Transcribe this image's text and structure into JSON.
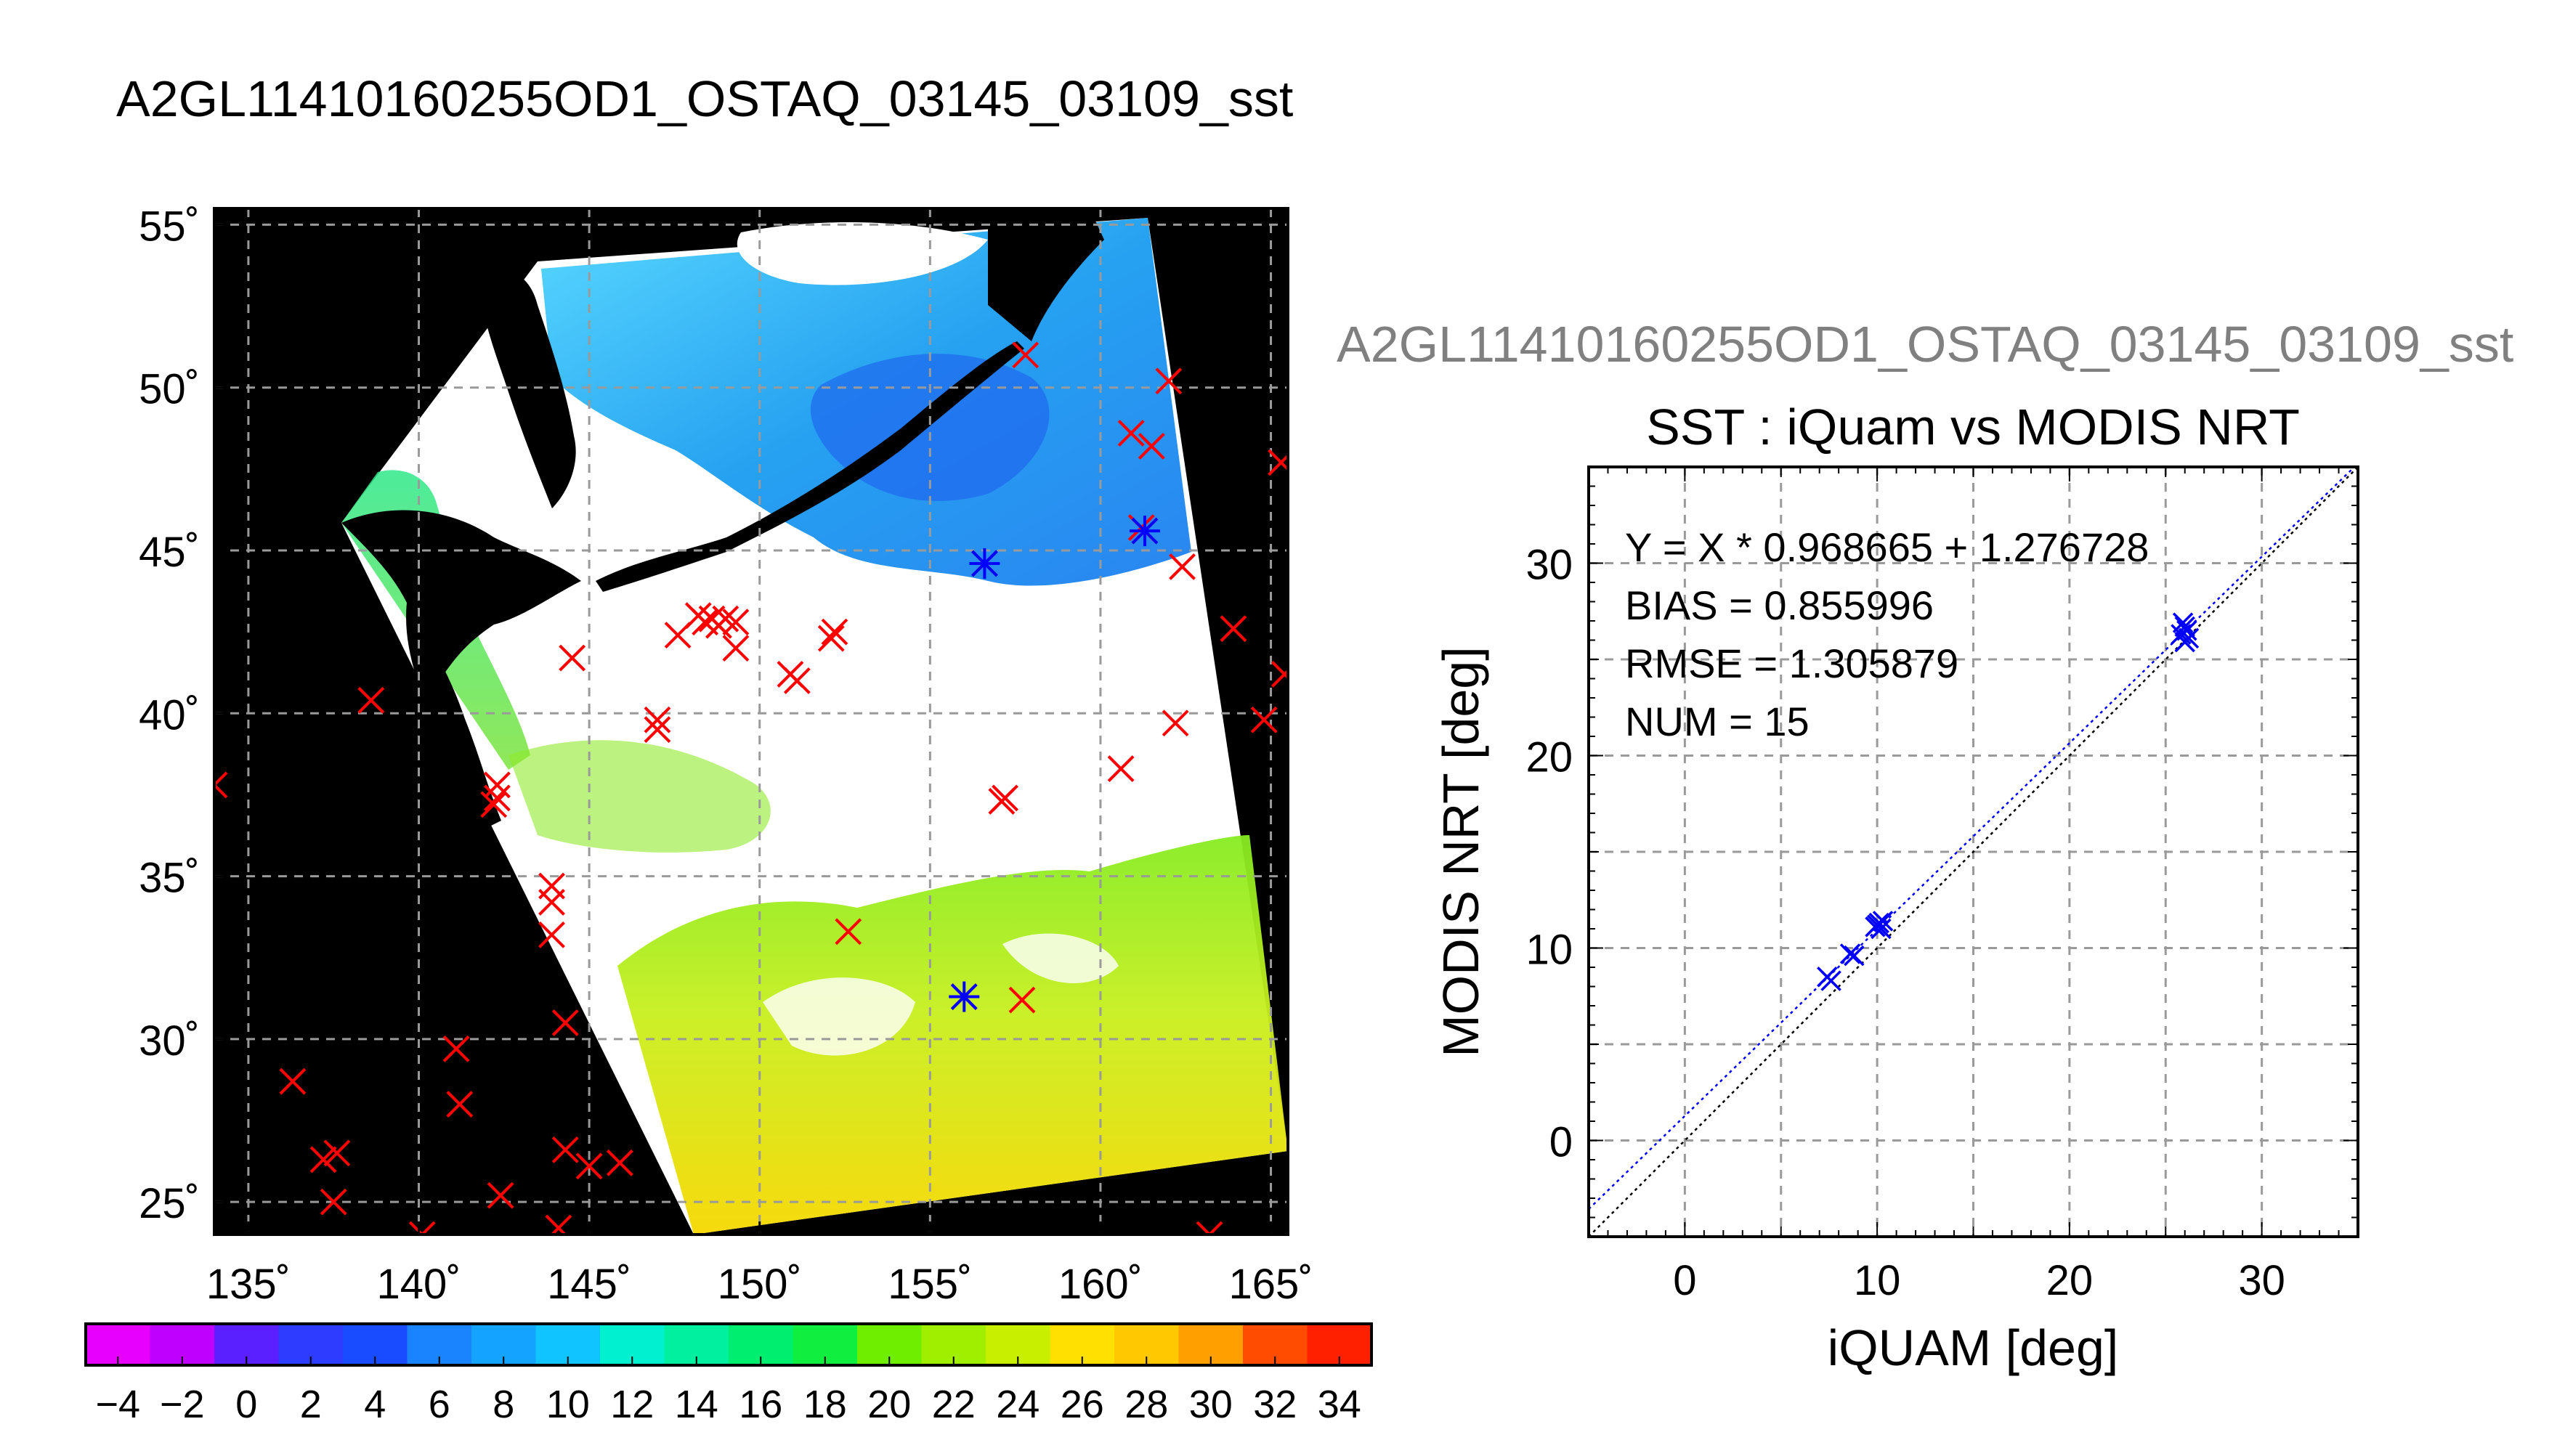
{
  "page_title": "A2GL11410160255OD1_OSTAQ_03145_03109_sst",
  "scatter_file_label": "A2GL11410160255OD1_OSTAQ_03145_03109_sst",
  "chart_data": [
    {
      "type": "map",
      "title": "A2GL11410160255OD1_OSTAQ_03145_03109_sst",
      "lon_range": [
        134.0,
        165.5
      ],
      "lat_range": [
        24.0,
        55.5
      ],
      "grid": true,
      "lon_ticks": [
        135,
        140,
        145,
        150,
        155,
        160,
        165
      ],
      "lat_ticks": [
        25,
        30,
        35,
        40,
        45,
        50,
        55
      ],
      "lon_tick_labels": [
        "135˚",
        "140˚",
        "145˚",
        "150˚",
        "155˚",
        "160˚",
        "165˚"
      ],
      "lat_tick_labels": [
        "25˚",
        "30˚",
        "35˚",
        "40˚",
        "45˚",
        "50˚",
        "55˚"
      ],
      "colorbar": {
        "min": -5,
        "max": 35,
        "step": 2,
        "tick_values": [
          -4,
          -2,
          0,
          2,
          4,
          6,
          8,
          10,
          12,
          14,
          16,
          18,
          20,
          22,
          24,
          26,
          28,
          30,
          32,
          34
        ],
        "tick_labels": [
          "−4",
          "−2",
          "0",
          "2",
          "4",
          "6",
          "8",
          "10",
          "12",
          "14",
          "16",
          "18",
          "20",
          "22",
          "24",
          "26",
          "28",
          "30",
          "32",
          "34"
        ]
      },
      "red_x_markers": [
        [
          134.0,
          37.8
        ],
        [
          136.3,
          28.7
        ],
        [
          137.2,
          26.3
        ],
        [
          137.6,
          26.5
        ],
        [
          137.5,
          25.0
        ],
        [
          138.6,
          40.4
        ],
        [
          140.1,
          24.0
        ],
        [
          141.1,
          29.7
        ],
        [
          141.2,
          28.0
        ],
        [
          142.2,
          37.2
        ],
        [
          142.3,
          37.8
        ],
        [
          142.3,
          37.4
        ],
        [
          142.4,
          25.2
        ],
        [
          143.9,
          34.2
        ],
        [
          143.9,
          34.7
        ],
        [
          143.9,
          33.2
        ],
        [
          144.1,
          24.2
        ],
        [
          144.3,
          30.5
        ],
        [
          144.3,
          26.6
        ],
        [
          144.5,
          41.7
        ],
        [
          145.0,
          26.1
        ],
        [
          145.9,
          26.2
        ],
        [
          147.0,
          39.5
        ],
        [
          147.0,
          39.8
        ],
        [
          147.6,
          42.4
        ],
        [
          148.2,
          43.0
        ],
        [
          148.4,
          42.8
        ],
        [
          148.6,
          42.9
        ],
        [
          148.8,
          42.7
        ],
        [
          149.0,
          42.9
        ],
        [
          149.3,
          42.8
        ],
        [
          149.3,
          42.0
        ],
        [
          150.9,
          41.2
        ],
        [
          151.1,
          41.0
        ],
        [
          152.2,
          42.5
        ],
        [
          152.1,
          42.3
        ],
        [
          152.6,
          33.3
        ],
        [
          157.1,
          37.3
        ],
        [
          157.2,
          37.4
        ],
        [
          157.7,
          31.2
        ],
        [
          157.8,
          51.0
        ],
        [
          160.6,
          38.3
        ],
        [
          160.9,
          48.6
        ],
        [
          161.5,
          48.2
        ],
        [
          161.2,
          45.7
        ],
        [
          162.0,
          50.2
        ],
        [
          162.2,
          39.7
        ],
        [
          162.4,
          44.5
        ],
        [
          163.2,
          24.0
        ],
        [
          163.9,
          42.6
        ],
        [
          164.8,
          39.8
        ],
        [
          165.3,
          47.7
        ],
        [
          165.4,
          41.2
        ]
      ],
      "blue_star_markers": [
        [
          156.0,
          31.3
        ],
        [
          156.6,
          44.6
        ],
        [
          161.3,
          45.6
        ]
      ]
    },
    {
      "type": "scatter",
      "title": "SST : iQuam vs MODIS NRT",
      "xlabel": "iQUAM [deg]",
      "ylabel": "MODIS NRT [deg]",
      "xlim": [
        -5,
        35
      ],
      "ylim": [
        -5,
        35
      ],
      "ticks": [
        0,
        10,
        20,
        30
      ],
      "tick_labels": [
        "0",
        "10",
        "20",
        "30"
      ],
      "grid": true,
      "stats": {
        "regression": "Y = X * 0.968665 + 1.276728",
        "bias": "BIAS = 0.855996",
        "rmse": "RMSE = 1.305879",
        "num": "NUM = 15"
      },
      "slope": 0.968665,
      "intercept": 1.276728,
      "points": [
        [
          7.4,
          8.5
        ],
        [
          8.6,
          9.7
        ],
        [
          8.8,
          9.6
        ],
        [
          9.9,
          11.1
        ],
        [
          10.1,
          11.3
        ],
        [
          10.0,
          11.2
        ],
        [
          10.2,
          11.0
        ],
        [
          26.0,
          26.7
        ],
        [
          26.1,
          26.5
        ],
        [
          25.9,
          26.9
        ],
        [
          26.0,
          25.9
        ],
        [
          26.2,
          26.1
        ],
        [
          25.8,
          26.3
        ],
        [
          10.3,
          11.4
        ],
        [
          7.6,
          8.3
        ]
      ]
    }
  ]
}
